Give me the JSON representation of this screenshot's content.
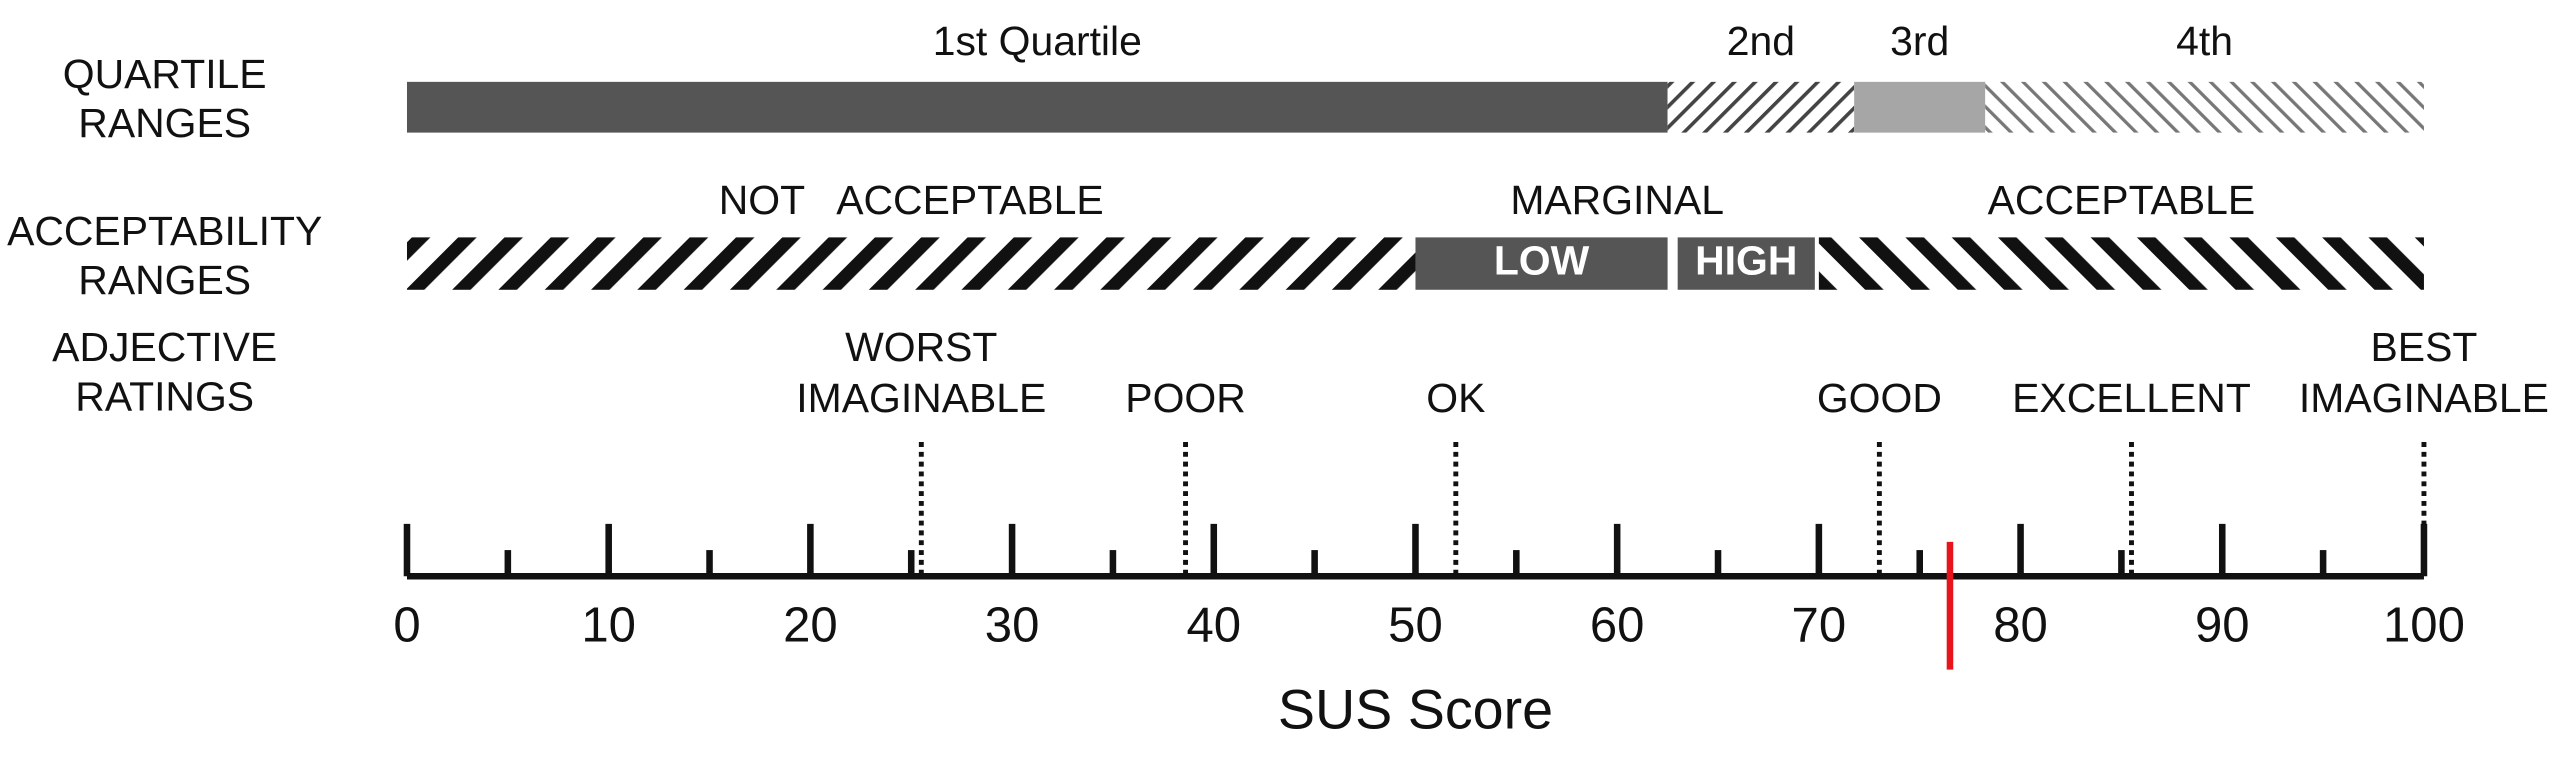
{
  "axis": {
    "label": "SUS Score",
    "xlim": [
      0,
      100
    ],
    "xticks": [
      0,
      10,
      20,
      30,
      40,
      50,
      60,
      70,
      80,
      90,
      100
    ],
    "minor_ticks": [
      5,
      15,
      25,
      35,
      45,
      55,
      65,
      75,
      85,
      95
    ]
  },
  "quartile_ranges": {
    "label": [
      "QUARTILE",
      "RANGES"
    ],
    "segments": [
      {
        "label": "1st Quartile",
        "start": 0,
        "end": 62.5
      },
      {
        "label": "2nd",
        "start": 62.5,
        "end": 71.75
      },
      {
        "label": "3rd",
        "start": 71.75,
        "end": 78.25
      },
      {
        "label": "4th",
        "start": 78.25,
        "end": 100
      }
    ]
  },
  "acceptability_ranges": {
    "label": [
      "ACCEPTABILITY",
      "RANGES"
    ],
    "segments": [
      {
        "label": "NOT   ACCEPTABLE",
        "start": 0,
        "end": 50
      },
      {
        "label": "MARGINAL",
        "start": 50,
        "end": 70,
        "parts": [
          {
            "label": "LOW",
            "start": 50,
            "end": 62.5
          },
          {
            "label": "HIGH",
            "start": 63,
            "end": 69.8
          }
        ]
      },
      {
        "label": "ACCEPTABLE",
        "start": 70,
        "end": 100
      }
    ]
  },
  "adjective_ratings": {
    "label": [
      "ADJECTIVE",
      "RATINGS"
    ],
    "ratings": [
      {
        "label": [
          "WORST",
          "IMAGINABLE"
        ],
        "score": 25.5
      },
      {
        "label": [
          "POOR"
        ],
        "score": 38.6
      },
      {
        "label": [
          "OK"
        ],
        "score": 52
      },
      {
        "label": [
          "GOOD"
        ],
        "score": 73
      },
      {
        "label": [
          "EXCELLENT"
        ],
        "score": 85.5
      },
      {
        "label": [
          "BEST",
          "IMAGINABLE"
        ],
        "score": 100
      }
    ]
  },
  "marker": {
    "score": 76.5,
    "color": "#e8141b"
  }
}
